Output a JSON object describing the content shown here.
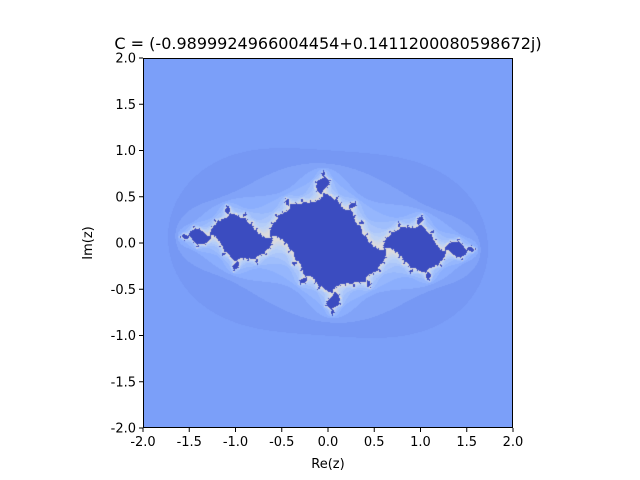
{
  "chart_data": {
    "type": "heatmap",
    "title": "C = (-0.9899924966004454+0.1411200080598672j)",
    "xlabel": "Re(z)",
    "ylabel": "Im(z)",
    "xlim": [
      -2.0,
      2.0
    ],
    "ylim": [
      -2.0,
      2.0
    ],
    "x_ticks": [
      "-2.0",
      "-1.5",
      "-1.0",
      "-0.5",
      "0.0",
      "0.5",
      "1.0",
      "1.5",
      "2.0"
    ],
    "y_ticks": [
      "-2.0",
      "-1.5",
      "-1.0",
      "-0.5",
      "0.0",
      "0.5",
      "1.0",
      "1.5",
      "2.0"
    ],
    "c_real": -0.9899924966004454,
    "c_imag": 0.1411200080598672,
    "colormap": "coolwarm",
    "grid": false,
    "colors": {
      "inside": "#3b4cc0",
      "outer": "#7b9ff9",
      "bright": "#dddcdc"
    }
  }
}
